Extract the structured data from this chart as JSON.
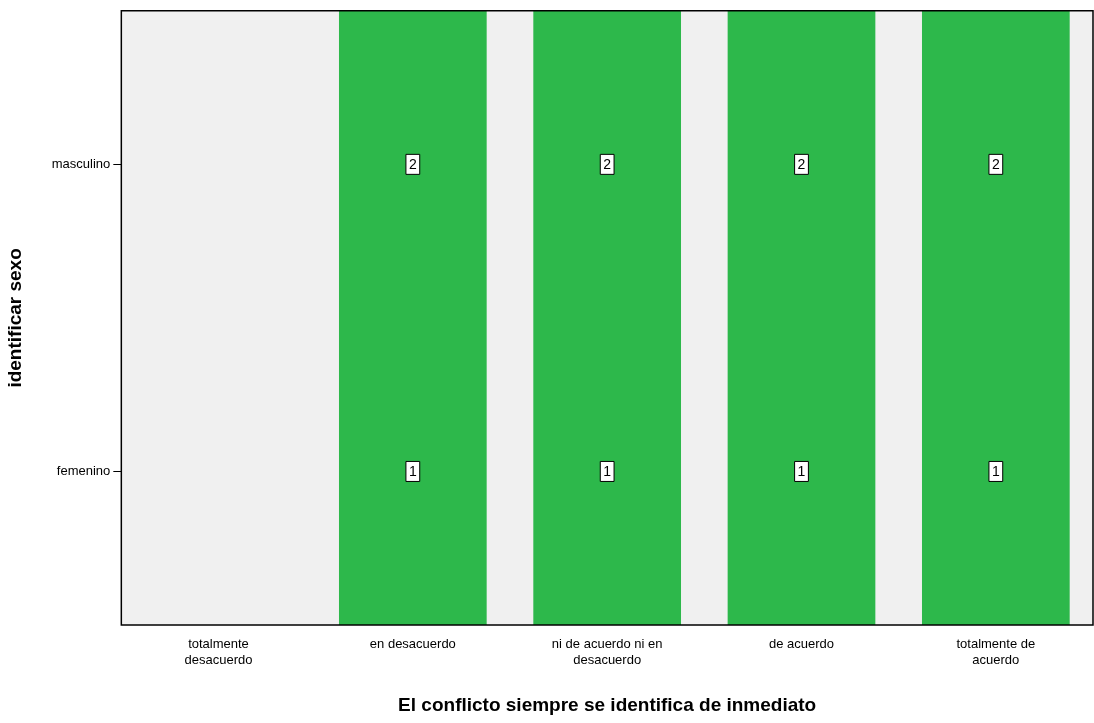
{
  "chart_data": {
    "type": "heatmap",
    "xlabel": "El conflicto siempre se identifica de inmediato",
    "ylabel": "identificar sexo",
    "categories": [
      "totalmente desacuerdo",
      "en desacuerdo",
      "ni de acuerdo ni en desacuerdo",
      "de acuerdo",
      "totalmente de acuerdo"
    ],
    "y_categories": [
      "masculino",
      "femenino"
    ],
    "cells": [
      [
        null,
        2,
        2,
        2,
        2
      ],
      [
        null,
        1,
        1,
        1,
        1
      ]
    ],
    "color": "#2db84b",
    "data_labels": true,
    "grid": false,
    "legend": false
  }
}
